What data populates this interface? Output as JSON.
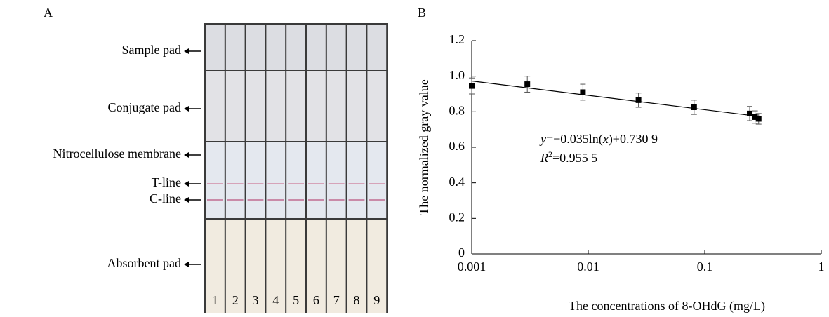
{
  "panel_a": {
    "label": "A",
    "parts": [
      "Sample pad",
      "Conjugate pad",
      "Nitrocellulose membrane",
      "T-line",
      "C-line",
      "Absorbent pad"
    ],
    "strips": [
      "1",
      "2",
      "3",
      "4",
      "5",
      "6",
      "7",
      "8",
      "9"
    ]
  },
  "chart_data": {
    "type": "scatter",
    "panel_label": "B",
    "xlabel": "The concentrations of 8-OHdG (mg/L)",
    "ylabel": "The normalized gray value",
    "xscale": "log",
    "xlim": [
      0.001,
      1
    ],
    "xticks": [
      0.001,
      0.01,
      0.1,
      1
    ],
    "ylim": [
      0,
      1.2
    ],
    "yticks": [
      0,
      0.2,
      0.4,
      0.6,
      0.8,
      {
        "value": 1,
        "label": "1.0"
      },
      1.2
    ],
    "x": [
      0.001,
      0.003,
      0.009,
      0.027,
      0.081,
      0.243,
      0.27,
      0.29
    ],
    "values": [
      0.945,
      0.955,
      0.91,
      0.865,
      0.825,
      0.79,
      0.77,
      0.76
    ],
    "errors": [
      0.045,
      0.045,
      0.045,
      0.04,
      0.04,
      0.04,
      0.035,
      0.03
    ],
    "color": "#000000",
    "fit_line": {
      "x": [
        0.001,
        0.29
      ],
      "y": [
        0.973,
        0.774
      ]
    },
    "equation": [
      "y",
      "=−0.035ln(",
      "x",
      ")+0.730 9"
    ],
    "r_squared": [
      "R",
      "2",
      "=0.955 5"
    ]
  }
}
